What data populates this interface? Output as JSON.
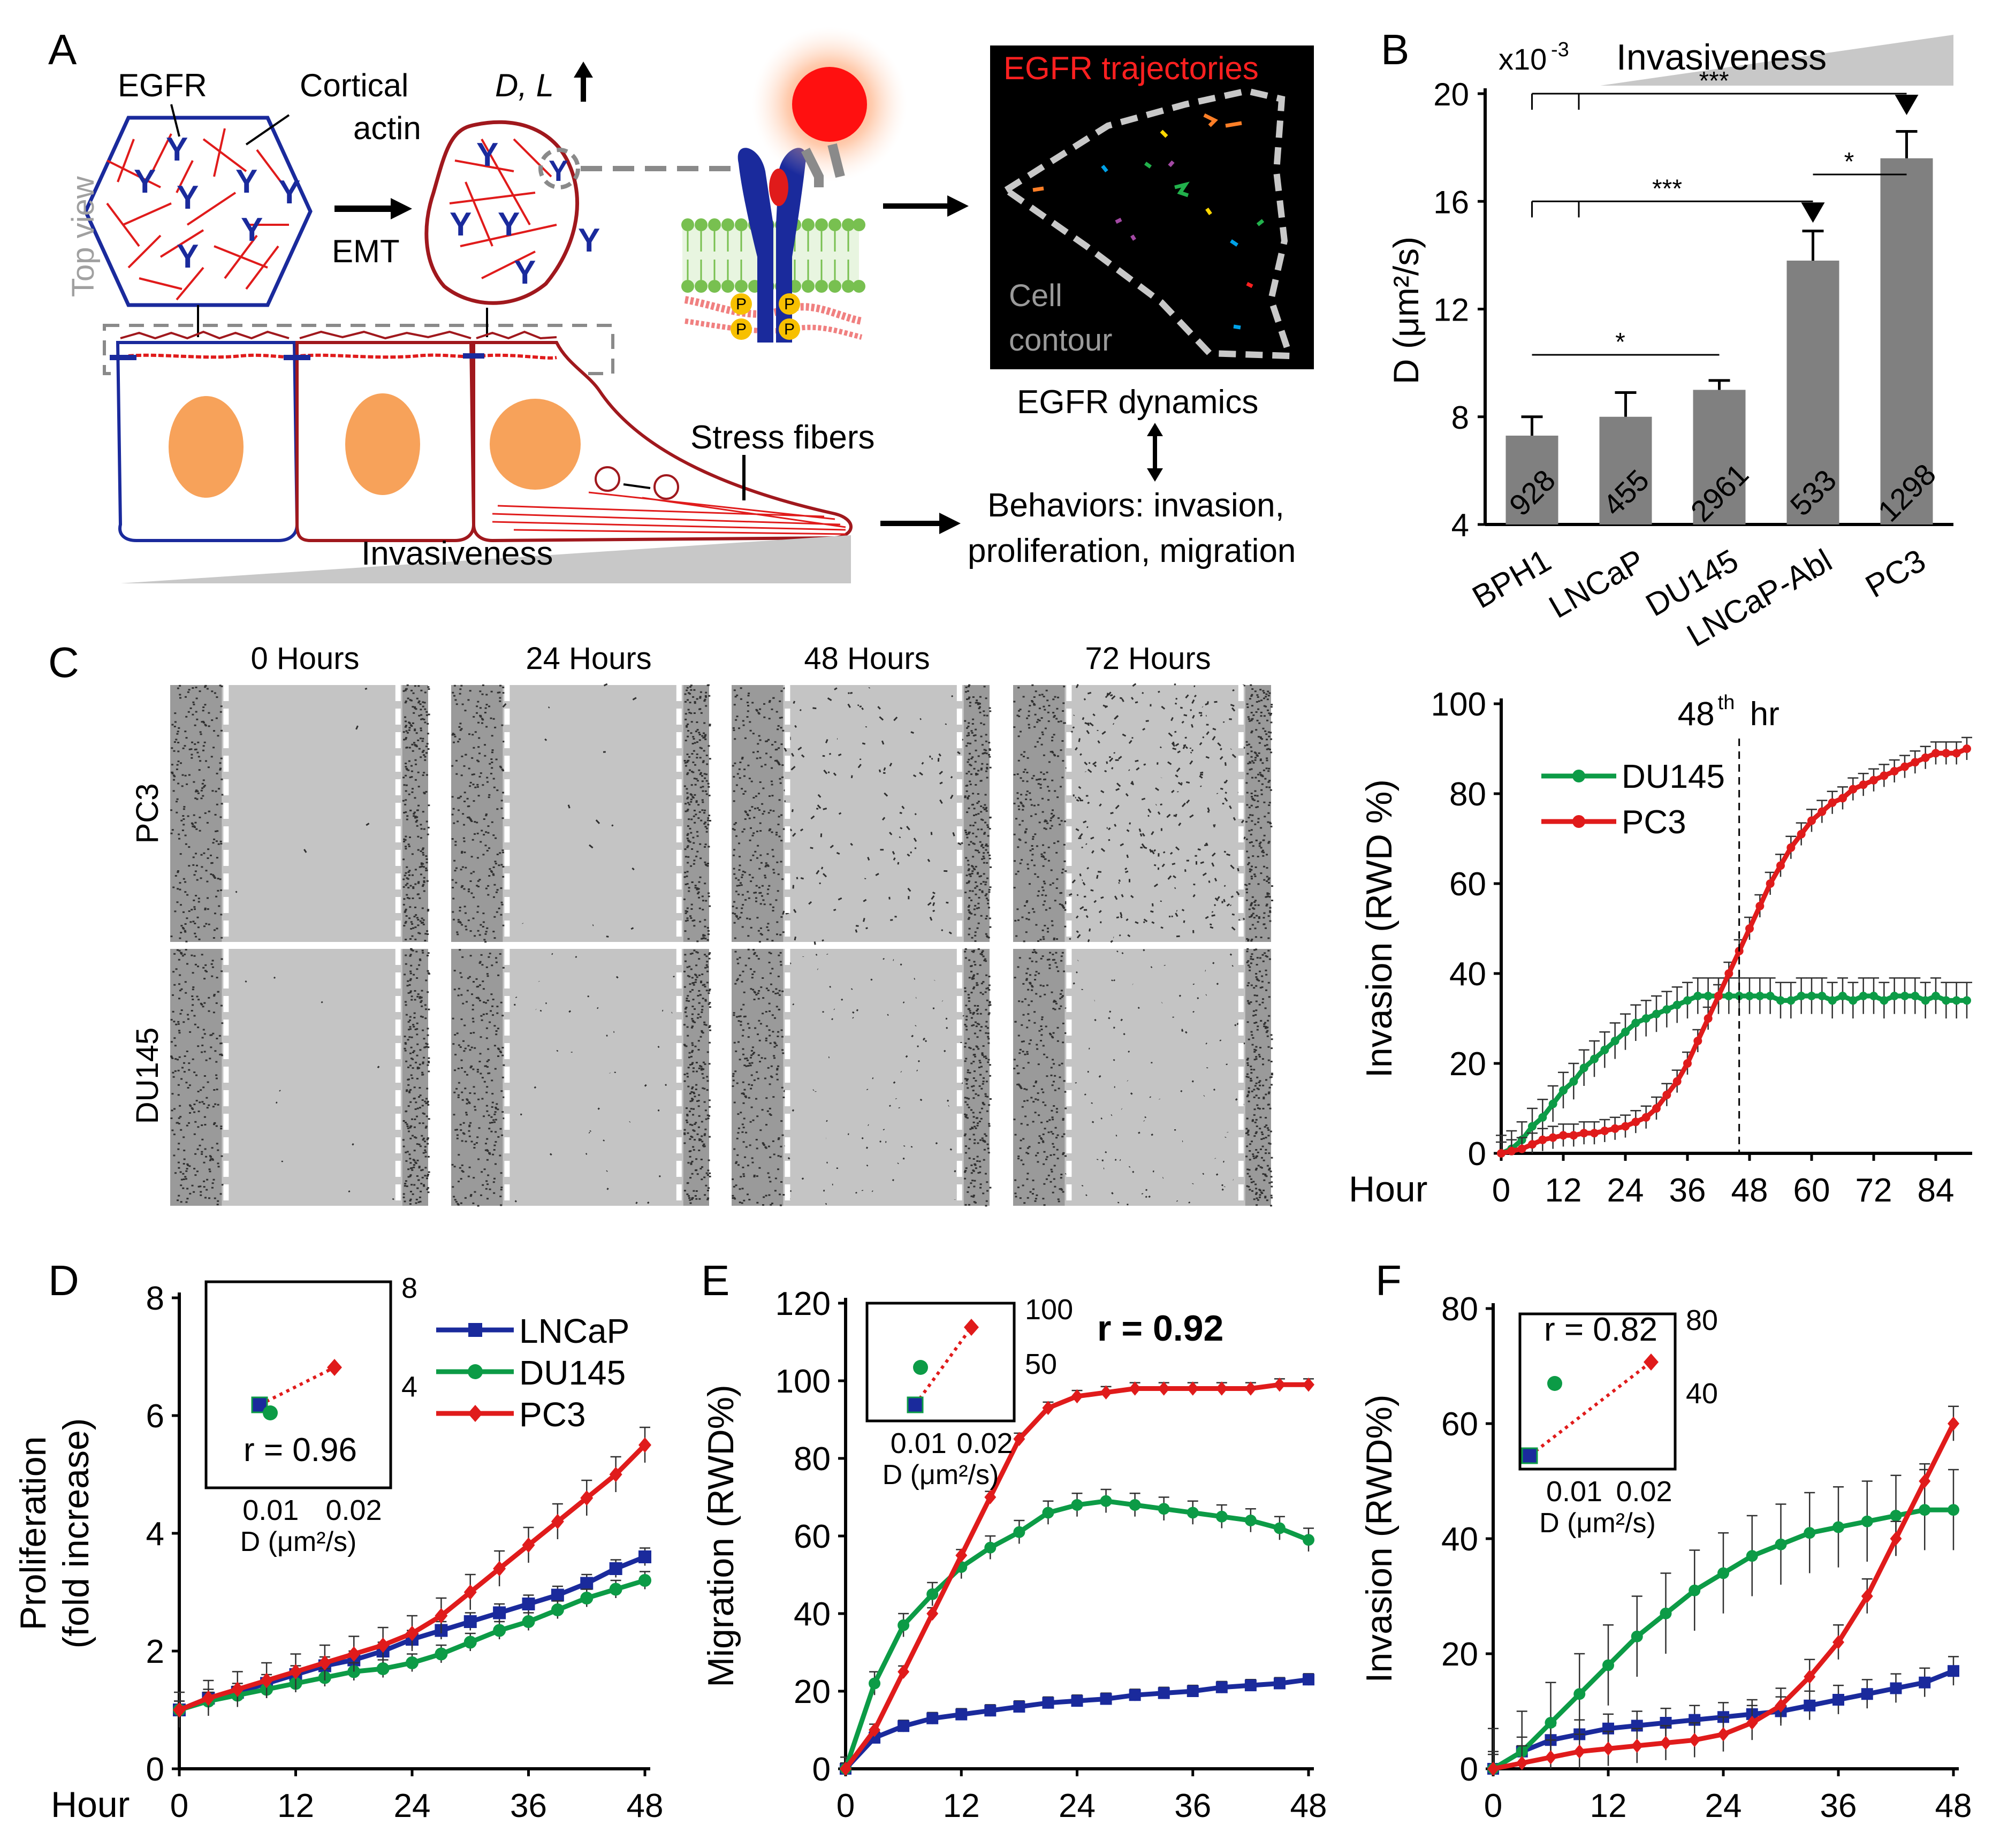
{
  "colors": {
    "blue": "#1a2a9c",
    "red": "#e01b1b",
    "green": "#0c9b46",
    "darkred": "#a0181d",
    "orange": "#f7a25a",
    "bar": "#808080",
    "gray": "#a0a0a0",
    "paneBg": "#c4c4c4"
  },
  "panelA": {
    "letter": "A",
    "egfr": "EGFR",
    "cortical": "Cortical",
    "actin": "actin",
    "top_view": "Top view",
    "emt": "EMT",
    "dl": "D, L",
    "stress": "Stress fibers",
    "invasiveness": "Invasiveness",
    "traj_title": "EGFR trajectories",
    "cell": "Cell",
    "contour": "contour",
    "dynamics": "EGFR dynamics",
    "beh1": "Behaviors: invasion,",
    "beh2": "proliferation, migration",
    "phos": "P"
  },
  "panelC": {
    "letter": "C",
    "times": [
      "0 Hours",
      "24 Hours",
      "48 Hours",
      "72 Hours"
    ],
    "rows": [
      "PC3",
      "DU145"
    ]
  },
  "chart_data": [
    {
      "id": "B",
      "type": "bar",
      "title": "Invasiveness",
      "ylabel": "D (μm²/s)",
      "yunit_label": "x10",
      "yunit_exp": "-3",
      "ylim": [
        4,
        20
      ],
      "yticks": [
        "4",
        "8",
        "12",
        "16",
        "20"
      ],
      "categories": [
        "BPH1",
        "LNCaP",
        "DU145",
        "LNCaP-Abl",
        "PC3"
      ],
      "values": [
        7.3,
        8.0,
        9.0,
        13.8,
        17.6
      ],
      "errors": [
        0.7,
        0.9,
        0.35,
        1.1,
        1.0
      ],
      "n_labels": [
        "928",
        "455",
        "2961",
        "533",
        "1298"
      ],
      "significance": [
        "***",
        "***",
        "*",
        "*"
      ]
    },
    {
      "id": "C-right",
      "type": "line",
      "ylabel": "Invasion (RWD %)",
      "xlabel": "Hour",
      "xlim": [
        0,
        90
      ],
      "ylim": [
        0,
        100
      ],
      "xticks": [
        "0",
        "12",
        "24",
        "36",
        "48",
        "60",
        "72",
        "84"
      ],
      "yticks": [
        "0",
        "20",
        "40",
        "60",
        "80",
        "100"
      ],
      "annotation_pre": "48",
      "annotation_sup": "th",
      "annotation_post": " hr",
      "annotation_x": 46,
      "series": [
        {
          "name": "DU145",
          "color": "#0c9b46",
          "x": [
            0,
            2,
            4,
            6,
            8,
            10,
            12,
            14,
            16,
            18,
            20,
            22,
            24,
            26,
            28,
            30,
            32,
            34,
            36,
            38,
            40,
            42,
            44,
            46,
            48,
            50,
            52,
            54,
            56,
            58,
            60,
            62,
            64,
            66,
            68,
            70,
            72,
            74,
            76,
            78,
            80,
            82,
            84,
            86,
            88,
            90
          ],
          "values": [
            0,
            1,
            3,
            6,
            8,
            11,
            14,
            16,
            19,
            21,
            23,
            25,
            27,
            29,
            30,
            31,
            32,
            33,
            34,
            35,
            35,
            35,
            35,
            35,
            35,
            35,
            35,
            34,
            34,
            35,
            35,
            35,
            34,
            35,
            34,
            35,
            35,
            34,
            35,
            35,
            35,
            34,
            35,
            34,
            34,
            34
          ],
          "err": 4
        },
        {
          "name": "PC3",
          "color": "#e01b1b",
          "x": [
            0,
            2,
            4,
            6,
            8,
            10,
            12,
            14,
            16,
            18,
            20,
            22,
            24,
            26,
            28,
            30,
            32,
            34,
            36,
            38,
            40,
            42,
            44,
            46,
            48,
            50,
            52,
            54,
            56,
            58,
            60,
            62,
            64,
            66,
            68,
            70,
            72,
            74,
            76,
            78,
            80,
            82,
            84,
            86,
            88,
            90
          ],
          "values": [
            0,
            0.5,
            1,
            2,
            3,
            3.5,
            4,
            4,
            4.5,
            4.5,
            5,
            5.5,
            6,
            7,
            8,
            10,
            13,
            16,
            20,
            25,
            30,
            35,
            40,
            45,
            50,
            55,
            60,
            64,
            68,
            71,
            74,
            76,
            78,
            79,
            81,
            82,
            83,
            84,
            85,
            86,
            87,
            88,
            89,
            89,
            89,
            90
          ],
          "err": 2.5
        }
      ]
    },
    {
      "id": "D",
      "type": "line",
      "ylabel": "Proliferation",
      "ylabel2": "(fold increase)",
      "xlabel": "Hour",
      "xlim": [
        0,
        48
      ],
      "ylim": [
        0,
        8
      ],
      "xticks": [
        "0",
        "12",
        "24",
        "36",
        "48"
      ],
      "yticks": [
        "0",
        "2",
        "4",
        "6",
        "8"
      ],
      "series": [
        {
          "name": "LNCaP",
          "color": "#1a2a9c",
          "marker": "square",
          "x": [
            0,
            3,
            6,
            9,
            12,
            15,
            18,
            21,
            24,
            27,
            30,
            33,
            36,
            39,
            42,
            45,
            48
          ],
          "values": [
            1.0,
            1.2,
            1.3,
            1.45,
            1.6,
            1.75,
            1.85,
            2.0,
            2.2,
            2.35,
            2.5,
            2.65,
            2.8,
            2.95,
            3.15,
            3.4,
            3.6
          ],
          "err": 0.15
        },
        {
          "name": "DU145",
          "color": "#0c9b46",
          "marker": "circle",
          "x": [
            0,
            3,
            6,
            9,
            12,
            15,
            18,
            21,
            24,
            27,
            30,
            33,
            36,
            39,
            42,
            45,
            48
          ],
          "values": [
            1.0,
            1.15,
            1.25,
            1.35,
            1.45,
            1.55,
            1.65,
            1.7,
            1.8,
            1.95,
            2.15,
            2.35,
            2.5,
            2.7,
            2.9,
            3.05,
            3.2
          ],
          "err": 0.15
        },
        {
          "name": "PC3",
          "color": "#e01b1b",
          "marker": "diamond",
          "x": [
            0,
            3,
            6,
            9,
            12,
            15,
            18,
            21,
            24,
            27,
            30,
            33,
            36,
            39,
            42,
            45,
            48
          ],
          "values": [
            1.0,
            1.2,
            1.35,
            1.5,
            1.65,
            1.8,
            1.95,
            2.1,
            2.3,
            2.6,
            3.0,
            3.4,
            3.8,
            4.2,
            4.6,
            5.0,
            5.5
          ],
          "err": 0.3
        }
      ],
      "inset": {
        "r": "r = 0.96",
        "xlabel": "D (μm²/s)",
        "xticks": [
          "0.01",
          "0.02"
        ],
        "yticks": [
          "4",
          "8"
        ]
      }
    },
    {
      "id": "E",
      "type": "line",
      "ylabel": "Migration (RWD%)",
      "xlabel": "",
      "xlim": [
        0,
        48
      ],
      "ylim": [
        0,
        120
      ],
      "xticks": [
        "0",
        "12",
        "24",
        "36",
        "48"
      ],
      "yticks": [
        "0",
        "20",
        "40",
        "60",
        "80",
        "100",
        "120"
      ],
      "annotation": "r = 0.92",
      "series": [
        {
          "name": "LNCaP",
          "color": "#1a2a9c",
          "marker": "square",
          "x": [
            0,
            3,
            6,
            9,
            12,
            15,
            18,
            21,
            24,
            27,
            30,
            33,
            36,
            39,
            42,
            45,
            48
          ],
          "values": [
            0,
            8,
            11,
            13,
            14,
            15,
            16,
            17,
            17.5,
            18,
            19,
            19.5,
            20,
            21,
            21.5,
            22,
            23
          ],
          "err": 1.5
        },
        {
          "name": "DU145",
          "color": "#0c9b46",
          "marker": "circle",
          "x": [
            0,
            3,
            6,
            9,
            12,
            15,
            18,
            21,
            24,
            27,
            30,
            33,
            36,
            39,
            42,
            45,
            48
          ],
          "values": [
            0,
            22,
            37,
            45,
            52,
            57,
            61,
            66,
            68,
            69,
            68,
            67,
            66,
            65,
            64,
            62,
            59
          ],
          "err": 3
        },
        {
          "name": "PC3",
          "color": "#e01b1b",
          "marker": "diamond",
          "x": [
            0,
            3,
            6,
            9,
            12,
            15,
            18,
            21,
            24,
            27,
            30,
            33,
            36,
            39,
            42,
            45,
            48
          ],
          "values": [
            0,
            10,
            25,
            40,
            55,
            70,
            85,
            93,
            96,
            97,
            98,
            98,
            98,
            98,
            98,
            99,
            99
          ],
          "err": 1.5
        }
      ],
      "inset": {
        "r": "",
        "xlabel": "D (μm²/s)",
        "xticks": [
          "0.01",
          "0.02"
        ],
        "yticks": [
          "50",
          "100"
        ]
      }
    },
    {
      "id": "F",
      "type": "line",
      "ylabel": "Invasion (RWD%)",
      "xlabel": "",
      "xlim": [
        0,
        48
      ],
      "ylim": [
        0,
        80
      ],
      "xticks": [
        "0",
        "12",
        "24",
        "36",
        "48"
      ],
      "yticks": [
        "0",
        "20",
        "40",
        "60",
        "80"
      ],
      "series": [
        {
          "name": "LNCaP",
          "color": "#1a2a9c",
          "marker": "square",
          "x": [
            0,
            3,
            6,
            9,
            12,
            15,
            18,
            21,
            24,
            27,
            30,
            33,
            36,
            39,
            42,
            45,
            48
          ],
          "values": [
            0,
            3,
            5,
            6,
            7,
            7.5,
            8,
            8.5,
            9,
            9.5,
            10,
            11,
            12,
            13,
            14,
            15,
            17
          ],
          "err": 2.5
        },
        {
          "name": "DU145",
          "color": "#0c9b46",
          "marker": "circle",
          "x": [
            0,
            3,
            6,
            9,
            12,
            15,
            18,
            21,
            24,
            27,
            30,
            33,
            36,
            39,
            42,
            45,
            48
          ],
          "values": [
            0,
            3,
            8,
            13,
            18,
            23,
            27,
            31,
            34,
            37,
            39,
            41,
            42,
            43,
            44,
            45,
            45
          ],
          "err": 7
        },
        {
          "name": "PC3",
          "color": "#e01b1b",
          "marker": "diamond",
          "x": [
            0,
            3,
            6,
            9,
            12,
            15,
            18,
            21,
            24,
            27,
            30,
            33,
            36,
            39,
            42,
            45,
            48
          ],
          "values": [
            0,
            1,
            2,
            3,
            3.5,
            4,
            4.5,
            5,
            6,
            8,
            11,
            16,
            22,
            30,
            40,
            50,
            60
          ],
          "err": 3
        }
      ],
      "inset": {
        "r": "r = 0.82",
        "xlabel": "D (μm²/s)",
        "xticks": [
          "0.01",
          "0.02"
        ],
        "yticks": [
          "40",
          "80"
        ]
      }
    }
  ]
}
